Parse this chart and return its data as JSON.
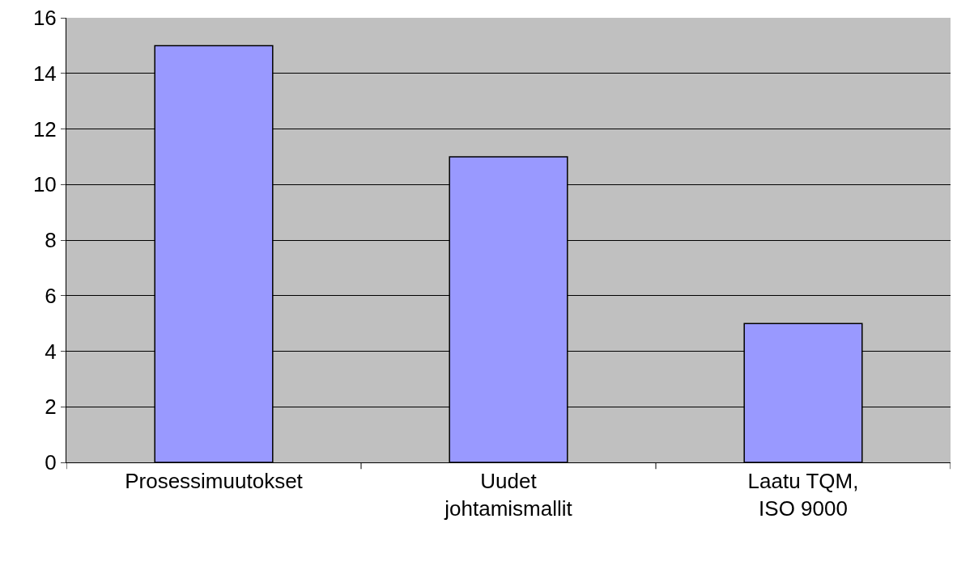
{
  "chart_data": {
    "type": "bar",
    "categories": [
      "Prosessimuutokset",
      "Uudet\njohtamismallit",
      "Laatu TQM,\nISO 9000"
    ],
    "values": [
      15,
      11,
      5
    ],
    "color": "#9999ff",
    "ylim": [
      0,
      16
    ],
    "yticks": [
      0,
      2,
      4,
      6,
      8,
      10,
      12,
      14,
      16
    ],
    "grid": "y"
  }
}
